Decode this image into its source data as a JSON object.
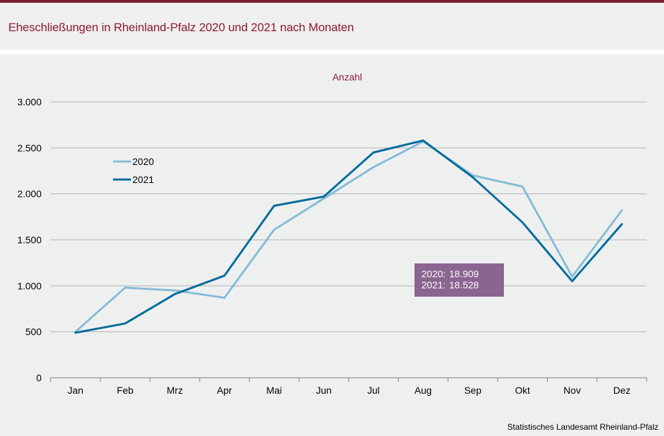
{
  "header": {
    "title": "Eheschließungen in Rheinland-Pfalz 2020 und 2021 nach Monaten"
  },
  "source": "Statistisches Landesamt Rheinland-Pfalz",
  "colors": {
    "accent": "#7b1e32",
    "series_2020": "#86bcd6",
    "series_2021": "#006d9c",
    "annotation_bg": "#8a6590"
  },
  "chart_data": {
    "type": "line",
    "ylabel": "Anzahl",
    "categories": [
      "Jan",
      "Feb",
      "Mrz",
      "Apr",
      "Mai",
      "Jun",
      "Jul",
      "Aug",
      "Sep",
      "Okt",
      "Nov",
      "Dez"
    ],
    "ylim": [
      0,
      3000
    ],
    "yticks": [
      0,
      500,
      1000,
      1500,
      2000,
      2500,
      3000
    ],
    "ytick_labels": [
      "0",
      "500",
      "1.000",
      "1.500",
      "2.000",
      "2.500",
      "3.000"
    ],
    "grid": true,
    "legend_position": "top-left",
    "series": [
      {
        "name": "2020",
        "values": [
          500,
          980,
          950,
          870,
          1610,
          1950,
          2290,
          2570,
          2200,
          2080,
          1100,
          1820
        ]
      },
      {
        "name": "2021",
        "values": [
          490,
          590,
          910,
          1110,
          1870,
          1970,
          2450,
          2580,
          2180,
          1690,
          1050,
          1670
        ]
      }
    ],
    "annotation": {
      "lines": [
        {
          "label": "2020:",
          "value": "18.909"
        },
        {
          "label": "2021:",
          "value": "18.528"
        }
      ]
    }
  }
}
